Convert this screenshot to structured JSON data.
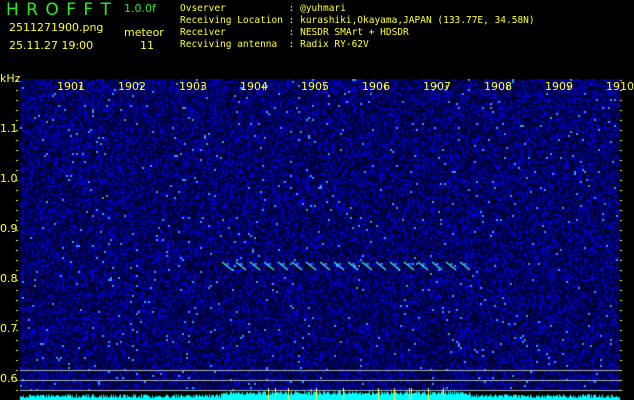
{
  "header": {
    "app_title": "H R O F F T",
    "version": "1.0.0f",
    "filename": "2511271900.png",
    "datetime": "25.11.27 19:00",
    "meteor_label": "meteor",
    "meteor_count": "11"
  },
  "info": [
    {
      "label": "Ovserver           ",
      "value": ": @yuhmari"
    },
    {
      "label": "Receiving Location ",
      "value": ": kurashiki,Okayama,JAPAN (133.77E, 34.58N)"
    },
    {
      "label": "Receiver           ",
      "value": ": NESDR SMArt + HDSDR"
    },
    {
      "label": "Recviving antenna  ",
      "value": ": Radix RY-62V"
    }
  ],
  "spectrogram": {
    "y_unit": "kHz",
    "x_ticks": [
      "1901",
      "1902",
      "1903",
      "1904",
      "1905",
      "1906",
      "1907",
      "1908",
      "1909",
      "1910"
    ],
    "y_ticks": [
      "1.1",
      "1.0",
      "0.9",
      "0.8",
      "0.7",
      "0.6"
    ],
    "meteor_echo_freq_khz": 0.83,
    "meteor_echo_span": [
      "1903.6",
      "1907.7"
    ],
    "colors": {
      "background": "#000033",
      "noise": "#1a1aff",
      "echo": "#33ffcc",
      "level_bar": "#00ffff",
      "axis": "#ffff33",
      "guide_lines": "#b0b0b0"
    }
  }
}
